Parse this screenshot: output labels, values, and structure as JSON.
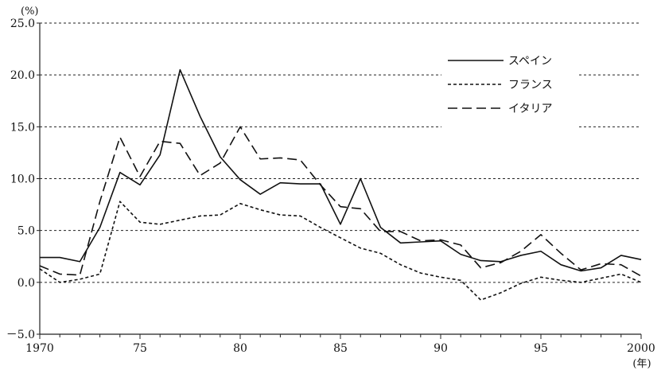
{
  "chart_data": {
    "type": "line",
    "title": "",
    "y_unit": "(%)",
    "x_unit": "(年)",
    "ylim": [
      -5,
      25
    ],
    "xlim": [
      1970,
      2000
    ],
    "y_ticks": [
      {
        "value": -5,
        "label": "－5.0"
      },
      {
        "value": 0,
        "label": "0.0"
      },
      {
        "value": 5,
        "label": "5.0"
      },
      {
        "value": 10,
        "label": "10.0"
      },
      {
        "value": 15,
        "label": "15.0"
      },
      {
        "value": 20,
        "label": "20.0"
      },
      {
        "value": 25,
        "label": "25.0"
      }
    ],
    "x_ticks": [
      {
        "value": 1970,
        "label": "1970"
      },
      {
        "value": 1975,
        "label": "75"
      },
      {
        "value": 1980,
        "label": "80"
      },
      {
        "value": 1985,
        "label": "85"
      },
      {
        "value": 1990,
        "label": "90"
      },
      {
        "value": 1995,
        "label": "95"
      },
      {
        "value": 2000,
        "label": "2000"
      }
    ],
    "grid": "horizontal-dotted",
    "legend_position": "top-right",
    "x": [
      1970,
      1971,
      1972,
      1973,
      1974,
      1975,
      1976,
      1977,
      1978,
      1979,
      1980,
      1981,
      1982,
      1983,
      1984,
      1985,
      1986,
      1987,
      1988,
      1989,
      1990,
      1991,
      1992,
      1993,
      1994,
      1995,
      1996,
      1997,
      1998,
      1999,
      2000
    ],
    "series": [
      {
        "name": "スペイン",
        "style": "solid",
        "values": [
          2.4,
          2.4,
          2.0,
          5.3,
          10.6,
          9.4,
          12.3,
          20.5,
          16.0,
          12.1,
          9.9,
          8.5,
          9.6,
          9.5,
          9.5,
          5.6,
          10.0,
          5.3,
          3.8,
          3.9,
          4.0,
          2.7,
          2.1,
          2.0,
          2.6,
          3.0,
          1.7,
          1.1,
          1.4,
          2.6,
          2.2
        ]
      },
      {
        "name": "フランス",
        "style": "dotted",
        "values": [
          1.3,
          0.0,
          0.3,
          0.8,
          7.8,
          5.8,
          5.6,
          6.0,
          6.4,
          6.5,
          7.6,
          7.0,
          6.5,
          6.4,
          5.3,
          4.3,
          3.3,
          2.8,
          1.7,
          0.9,
          0.5,
          0.2,
          -1.7,
          -1.0,
          -0.1,
          0.5,
          0.2,
          0.0,
          0.4,
          0.8,
          0.0
        ]
      },
      {
        "name": "イタリア",
        "style": "dashed",
        "values": [
          1.6,
          0.8,
          0.7,
          7.8,
          14.0,
          10.2,
          13.6,
          13.4,
          10.3,
          11.5,
          15.0,
          11.9,
          12.0,
          11.8,
          9.4,
          7.3,
          7.1,
          4.9,
          4.9,
          4.0,
          4.1,
          3.6,
          1.4,
          1.9,
          3.0,
          4.6,
          2.8,
          1.2,
          1.8,
          1.7,
          0.6
        ]
      }
    ]
  }
}
